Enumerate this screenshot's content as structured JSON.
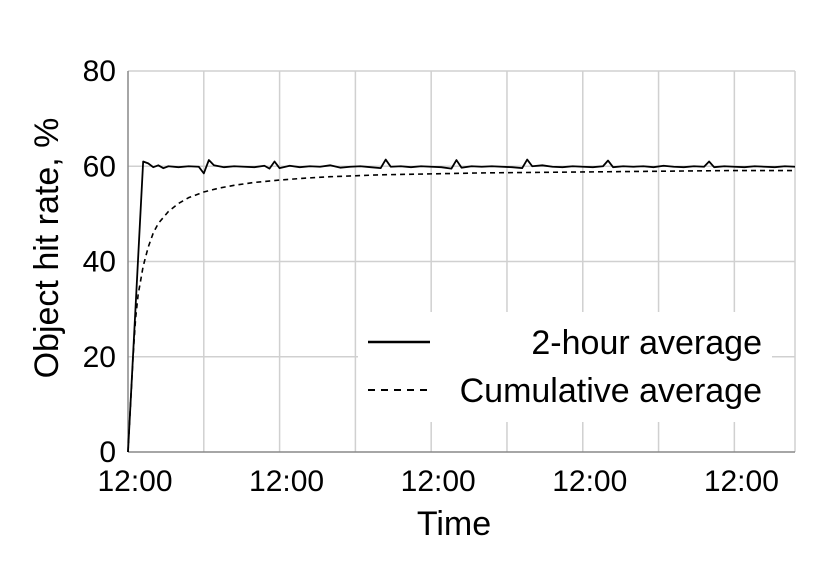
{
  "chart_data": {
    "type": "line",
    "xlabel": "Time",
    "ylabel": "Object hit rate, %",
    "ylim": [
      0,
      80
    ],
    "yticks": [
      "0",
      "20",
      "40",
      "60",
      "80"
    ],
    "xlim": [
      0,
      132
    ],
    "xticks": [
      {
        "x": 0,
        "label": "12:00"
      },
      {
        "x": 30,
        "label": "12:00"
      },
      {
        "x": 60,
        "label": "12:00"
      },
      {
        "x": 90,
        "label": "12:00"
      },
      {
        "x": 120,
        "label": "12:00"
      }
    ],
    "grid": true,
    "legend_placement": "bottom-right",
    "series": [
      {
        "name": "2-hour average",
        "style": "solid",
        "color": "#000000",
        "points": [
          [
            0,
            0
          ],
          [
            3,
            61
          ],
          [
            4,
            60.6
          ],
          [
            5,
            59.8
          ],
          [
            6,
            60.2
          ],
          [
            7,
            59.6
          ],
          [
            8,
            60.0
          ],
          [
            10,
            59.8
          ],
          [
            12,
            60.0
          ],
          [
            14,
            59.9
          ],
          [
            15,
            58.5
          ],
          [
            16,
            61.3
          ],
          [
            17,
            60.2
          ],
          [
            19,
            59.8
          ],
          [
            21,
            60.0
          ],
          [
            23,
            59.9
          ],
          [
            25,
            59.8
          ],
          [
            27,
            60.1
          ],
          [
            28,
            59.5
          ],
          [
            29,
            61.0
          ],
          [
            30,
            59.6
          ],
          [
            32,
            60.1
          ],
          [
            34,
            59.8
          ],
          [
            36,
            60.0
          ],
          [
            38,
            59.9
          ],
          [
            40,
            60.2
          ],
          [
            42,
            59.7
          ],
          [
            44,
            59.9
          ],
          [
            46,
            60.0
          ],
          [
            48,
            59.8
          ],
          [
            50,
            59.6
          ],
          [
            51,
            61.4
          ],
          [
            52,
            59.9
          ],
          [
            54,
            60.0
          ],
          [
            56,
            59.8
          ],
          [
            58,
            60.0
          ],
          [
            60,
            59.9
          ],
          [
            62,
            59.8
          ],
          [
            64,
            59.5
          ],
          [
            65,
            61.3
          ],
          [
            66,
            59.7
          ],
          [
            68,
            60.0
          ],
          [
            70,
            59.9
          ],
          [
            72,
            60.0
          ],
          [
            74,
            59.9
          ],
          [
            76,
            59.8
          ],
          [
            78,
            59.6
          ],
          [
            79,
            61.4
          ],
          [
            80,
            60.0
          ],
          [
            82,
            60.2
          ],
          [
            84,
            59.9
          ],
          [
            86,
            59.8
          ],
          [
            88,
            60.0
          ],
          [
            90,
            59.9
          ],
          [
            92,
            59.8
          ],
          [
            94,
            60.0
          ],
          [
            95,
            61.2
          ],
          [
            96,
            59.8
          ],
          [
            98,
            60.0
          ],
          [
            100,
            59.9
          ],
          [
            102,
            60.0
          ],
          [
            104,
            59.8
          ],
          [
            106,
            60.1
          ],
          [
            108,
            59.9
          ],
          [
            110,
            59.8
          ],
          [
            112,
            60.0
          ],
          [
            114,
            59.9
          ],
          [
            115,
            61.0
          ],
          [
            116,
            59.8
          ],
          [
            118,
            60.0
          ],
          [
            120,
            59.9
          ],
          [
            122,
            59.8
          ],
          [
            124,
            60.0
          ],
          [
            126,
            59.9
          ],
          [
            128,
            59.8
          ],
          [
            130,
            60.0
          ],
          [
            132,
            59.9
          ]
        ]
      },
      {
        "name": "Cumulative average",
        "style": "dashed",
        "color": "#000000",
        "points": [
          [
            0,
            0
          ],
          [
            0.5,
            10
          ],
          [
            1,
            20
          ],
          [
            1.5,
            28
          ],
          [
            2,
            33
          ],
          [
            3,
            39
          ],
          [
            4,
            43
          ],
          [
            5,
            46
          ],
          [
            6,
            48
          ],
          [
            8,
            50.5
          ],
          [
            10,
            52.2
          ],
          [
            12,
            53.4
          ],
          [
            15,
            54.6
          ],
          [
            18,
            55.4
          ],
          [
            21,
            56.0
          ],
          [
            25,
            56.6
          ],
          [
            30,
            57.1
          ],
          [
            35,
            57.5
          ],
          [
            40,
            57.8
          ],
          [
            50,
            58.2
          ],
          [
            60,
            58.4
          ],
          [
            70,
            58.6
          ],
          [
            80,
            58.7
          ],
          [
            90,
            58.8
          ],
          [
            100,
            58.9
          ],
          [
            110,
            59.0
          ],
          [
            120,
            59.1
          ],
          [
            132,
            59.1
          ]
        ]
      }
    ]
  }
}
